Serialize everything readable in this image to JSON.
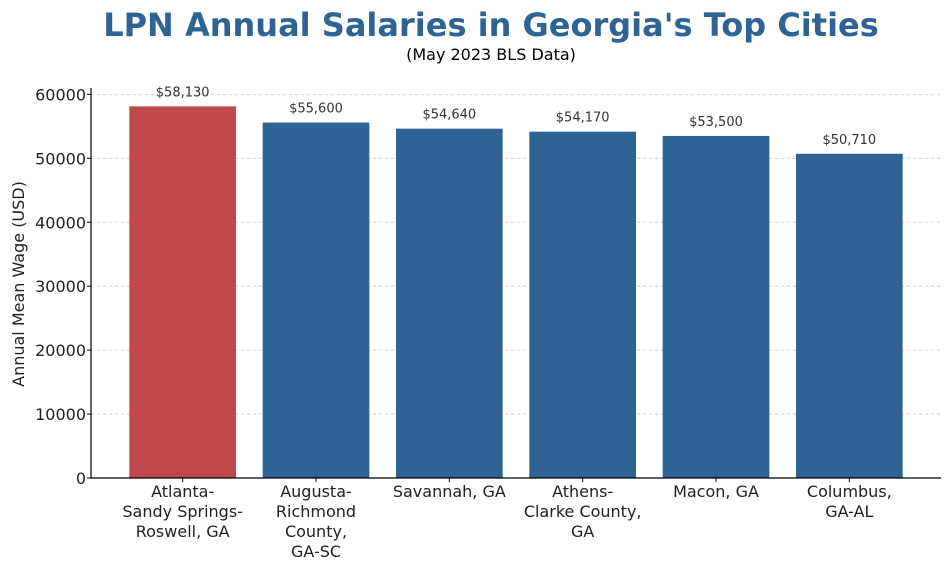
{
  "chart_data": {
    "type": "bar",
    "title": "LPN Annual Salaries in Georgia's Top Cities",
    "subtitle": "(May 2023 BLS Data)",
    "xlabel": "",
    "ylabel": "Annual Mean Wage (USD)",
    "ylim": [
      0,
      61000
    ],
    "yticks": [
      0,
      10000,
      20000,
      30000,
      40000,
      50000,
      60000
    ],
    "ytick_labels": [
      "0",
      "10000",
      "20000",
      "30000",
      "40000",
      "50000",
      "60000"
    ],
    "grid": "horizontal dashed",
    "categories": [
      [
        "Atlanta-",
        "Sandy Springs-",
        "Roswell, GA"
      ],
      [
        "Augusta-",
        "Richmond",
        "County,",
        "GA-SC"
      ],
      [
        "Savannah, GA"
      ],
      [
        "Athens-",
        "Clarke County,",
        "GA"
      ],
      [
        "Macon, GA"
      ],
      [
        "Columbus,",
        "GA-AL"
      ]
    ],
    "values": [
      58130,
      55600,
      54640,
      54170,
      53500,
      50710
    ],
    "data_labels": [
      "$58,130",
      "$55,600",
      "$54,640",
      "$54,170",
      "$53,500",
      "$50,710"
    ],
    "highlight_index": 0,
    "colors": {
      "highlight": "#c0474a",
      "default": "#2f6393",
      "title": "#2f6393",
      "grid": "#c8c8c8",
      "axis": "#000000"
    }
  }
}
